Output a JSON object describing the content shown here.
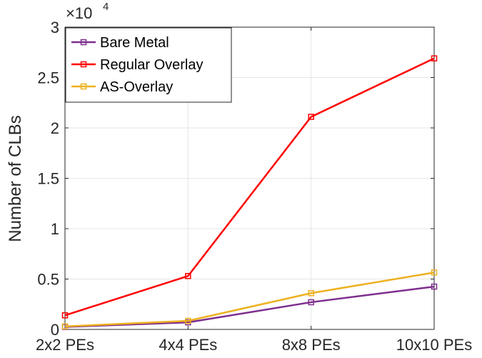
{
  "chart_data": {
    "type": "line",
    "categories": [
      "2x2 PEs",
      "4x4 PEs",
      "8x8 PEs",
      "10x10 PEs"
    ],
    "series": [
      {
        "name": "Bare Metal",
        "color": "#7E2F8E",
        "values": [
          250,
          700,
          2700,
          4250
        ]
      },
      {
        "name": "Regular Overlay",
        "color": "#FF0000",
        "values": [
          1400,
          5300,
          21100,
          26900
        ]
      },
      {
        "name": "AS-Overlay",
        "color": "#EDB120",
        "values": [
          300,
          850,
          3600,
          5650
        ]
      }
    ],
    "ylabel": "Number of CLBs",
    "xlabel": "",
    "ylim": [
      0,
      30000
    ],
    "yticks": [
      0,
      0.5,
      1,
      1.5,
      2,
      2.5,
      3
    ],
    "y_multiplier": {
      "base": "×10",
      "exponent": "4"
    },
    "grid": true,
    "legend_position": "top-left",
    "marker": "square"
  }
}
